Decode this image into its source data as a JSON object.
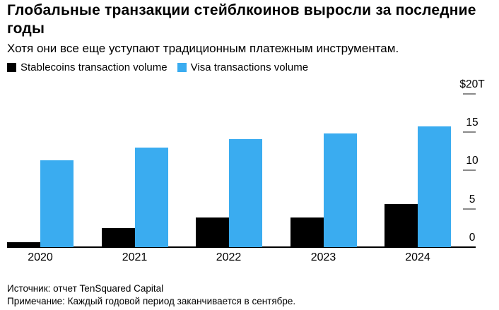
{
  "header": {
    "title": "Глобальные транзакции стейблкоинов выросли за последние годы",
    "subtitle": "Хотя они все еще уступают традиционным платежным инструментам."
  },
  "legend": [
    {
      "label": "Stablecoins transaction volume",
      "color": "#000000"
    },
    {
      "label": "Visa transactions volume",
      "color": "#3aacf0"
    }
  ],
  "chart_data": {
    "type": "bar",
    "title": "Глобальные транзакции стейблкоинов выросли за последние годы",
    "categories": [
      "2020",
      "2021",
      "2022",
      "2023",
      "2024"
    ],
    "series": [
      {
        "name": "Stablecoins transaction volume",
        "color": "#000000",
        "values": [
          0.6,
          2.5,
          3.9,
          3.9,
          5.6
        ]
      },
      {
        "name": "Visa transactions volume",
        "color": "#3aacf0",
        "values": [
          11.3,
          13.0,
          14.1,
          14.8,
          15.7
        ]
      }
    ],
    "unit": "trillion USD",
    "ylim": [
      0,
      20
    ],
    "y_ticks": [
      {
        "label": "$20T",
        "value": 20,
        "dash": true
      },
      {
        "label": "15",
        "value": 15,
        "dash": true
      },
      {
        "label": "10",
        "value": 10,
        "dash": true
      },
      {
        "label": "5",
        "value": 5,
        "dash": true
      },
      {
        "label": "0",
        "value": 0,
        "dash": false
      }
    ],
    "grid": false,
    "legend_position": "top-left"
  },
  "colors": {
    "stablecoins_bar": "#000000",
    "visa_bar": "#3aacf0",
    "axis_line": "#000000",
    "tick_dash": "#8a8a8a",
    "text": "#000000",
    "background": "#ffffff"
  },
  "footer": {
    "source": "Источник: отчет TenSquared Capital",
    "note": "Примечание: Каждый годовой период заканчивается в сентябре."
  }
}
